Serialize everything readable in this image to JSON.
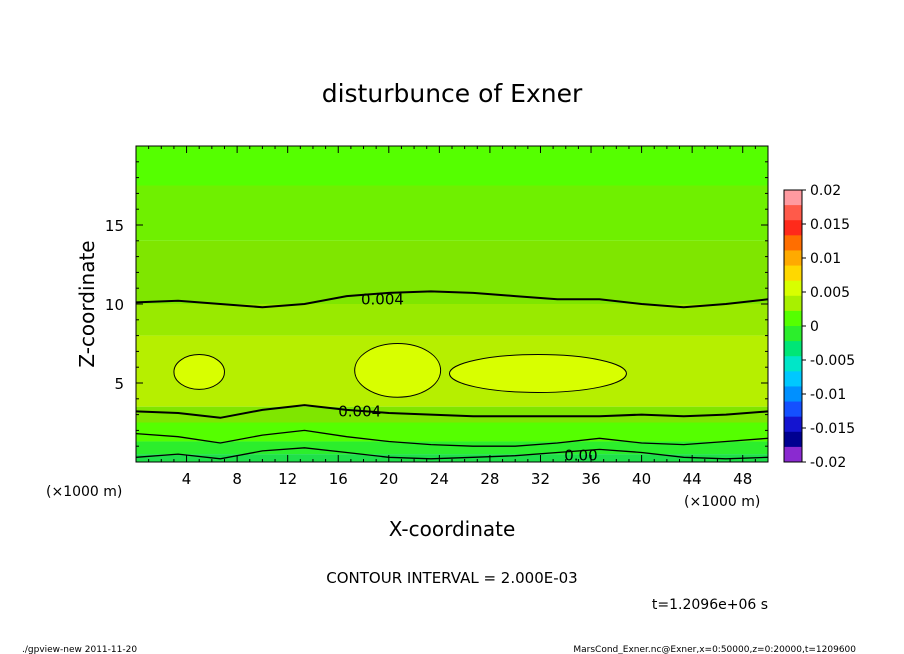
{
  "chart_data": {
    "type": "contour",
    "title": "disturbunce of Exner",
    "xlabel": "X-coordinate",
    "ylabel": "Z-coordinate",
    "x_unit_left": "(×1000 m)",
    "x_unit_right": "(×1000 m)",
    "xlim": [
      0,
      50
    ],
    "ylim": [
      0,
      20
    ],
    "x_ticks": [
      "4",
      "8",
      "12",
      "16",
      "20",
      "24",
      "28",
      "32",
      "36",
      "40",
      "44",
      "48"
    ],
    "y_ticks": [
      "5",
      "10",
      "15"
    ],
    "colorbar_ticks": [
      "0.02",
      "0.015",
      "0.01",
      "0.005",
      "0",
      "-0.005",
      "-0.01",
      "-0.015",
      "-0.02"
    ],
    "colorbar_colors": [
      "#ff9aa0",
      "#ff5a4a",
      "#ff2a1a",
      "#ff6e00",
      "#ffaa00",
      "#ffd800",
      "#d8ff00",
      "#a8f000",
      "#55ff00",
      "#2cee2c",
      "#00e676",
      "#00e6c8",
      "#00c8ff",
      "#0090ff",
      "#1450ff",
      "#1414d0",
      "#000090",
      "#8a2ad0"
    ],
    "contour_labels": [
      "0.004",
      "0.004",
      "0.00"
    ],
    "contour_interval": "CONTOUR INTERVAL = 2.000E-03",
    "time": "t=1.2096e+06 s",
    "bands": [
      {
        "zmin": 17.5,
        "zmax": 20,
        "color": "#55ff00"
      },
      {
        "zmin": 14,
        "zmax": 17.5,
        "color": "#6ff000"
      },
      {
        "zmin": 10,
        "zmax": 14,
        "color": "#7fe600"
      },
      {
        "zmin": 8,
        "zmax": 10,
        "color": "#99ea00"
      },
      {
        "zmin": 3.5,
        "zmax": 8,
        "color": "#b6ef00"
      },
      {
        "zmin": 2.5,
        "zmax": 3.5,
        "color": "#7fe600"
      },
      {
        "zmin": 1.3,
        "zmax": 2.5,
        "color": "#55ff00"
      },
      {
        "zmin": 0.5,
        "zmax": 1.3,
        "color": "#2cee2c"
      },
      {
        "zmin": 0,
        "zmax": 0.5,
        "color": "#1fe04a"
      }
    ],
    "blobs": [
      {
        "cx": 5,
        "cz": 5.7,
        "rx": 2.0,
        "rz": 1.1,
        "color": "#d8ff00"
      },
      {
        "cx": 20.7,
        "cz": 5.8,
        "rx": 3.4,
        "rz": 1.7,
        "color": "#d8ff00"
      },
      {
        "cx": 31.8,
        "cz": 5.6,
        "rx": 7.0,
        "rz": 1.2,
        "color": "#d8ff00"
      }
    ],
    "contours": [
      {
        "z": [
          10.1,
          10.2,
          10.0,
          9.8,
          10.0,
          10.5,
          10.7,
          10.8,
          10.7,
          10.5,
          10.3,
          10.3,
          10.0,
          9.8,
          10.0,
          10.3
        ]
      },
      {
        "z": [
          3.2,
          3.1,
          2.8,
          3.3,
          3.6,
          3.3,
          3.1,
          3.0,
          2.9,
          2.9,
          2.9,
          2.9,
          3.0,
          2.9,
          3.0,
          3.2
        ]
      },
      {
        "z": [
          1.8,
          1.6,
          1.2,
          1.7,
          2.0,
          1.6,
          1.3,
          1.1,
          1.0,
          1.0,
          1.2,
          1.5,
          1.2,
          1.1,
          1.3,
          1.5
        ]
      },
      {
        "z": [
          0.3,
          0.5,
          0.2,
          0.7,
          0.9,
          0.6,
          0.3,
          0.2,
          0.3,
          0.4,
          0.6,
          0.8,
          0.6,
          0.3,
          0.2,
          0.3
        ]
      }
    ]
  },
  "footer": {
    "left": "./gpview-new   2011-11-20",
    "right": "MarsCond_Exner.nc@Exner,x=0:50000,z=0:20000,t=1209600"
  }
}
